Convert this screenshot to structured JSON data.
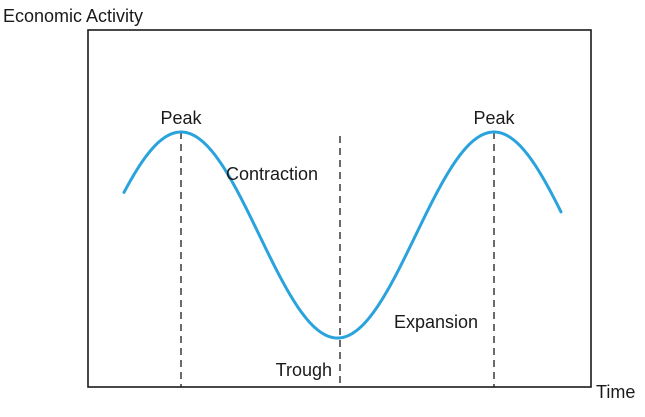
{
  "diagram": {
    "y_axis_label": "Economic Activity",
    "x_axis_label": "Time",
    "labels": {
      "peak_left": "Peak",
      "peak_right": "Peak",
      "contraction": "Contraction",
      "trough": "Trough",
      "expansion": "Expansion"
    },
    "colors": {
      "curve": "#2aa3dd",
      "frame": "#1a1a1a",
      "dashed_line": "#1a1a1a",
      "text": "#1a1a1a"
    }
  }
}
